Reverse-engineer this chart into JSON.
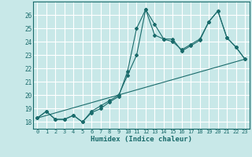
{
  "xlabel": "Humidex (Indice chaleur)",
  "bg_color": "#c8e8e8",
  "grid_color": "#ffffff",
  "line_color": "#1a6b6b",
  "xlim": [
    -0.5,
    23.5
  ],
  "ylim": [
    17.5,
    27.0
  ],
  "yticks": [
    18,
    19,
    20,
    21,
    22,
    23,
    24,
    25,
    26
  ],
  "xticks": [
    0,
    1,
    2,
    3,
    4,
    5,
    6,
    7,
    8,
    9,
    10,
    11,
    12,
    13,
    14,
    15,
    16,
    17,
    18,
    19,
    20,
    21,
    22,
    23
  ],
  "series1": [
    [
      0,
      18.3
    ],
    [
      1,
      18.8
    ],
    [
      2,
      18.2
    ],
    [
      3,
      18.2
    ],
    [
      4,
      18.5
    ],
    [
      5,
      18.0
    ],
    [
      6,
      18.7
    ],
    [
      7,
      19.0
    ],
    [
      8,
      19.5
    ],
    [
      9,
      19.9
    ],
    [
      10,
      21.8
    ],
    [
      11,
      25.0
    ],
    [
      12,
      26.4
    ],
    [
      13,
      25.3
    ],
    [
      14,
      24.2
    ],
    [
      15,
      24.2
    ],
    [
      16,
      23.3
    ],
    [
      17,
      23.7
    ],
    [
      18,
      24.1
    ],
    [
      19,
      25.5
    ],
    [
      20,
      26.3
    ],
    [
      21,
      24.3
    ],
    [
      22,
      23.6
    ],
    [
      23,
      22.7
    ]
  ],
  "series2": [
    [
      0,
      18.3
    ],
    [
      1,
      18.8
    ],
    [
      2,
      18.2
    ],
    [
      3,
      18.2
    ],
    [
      4,
      18.5
    ],
    [
      5,
      18.0
    ],
    [
      6,
      18.8
    ],
    [
      7,
      19.2
    ],
    [
      8,
      19.6
    ],
    [
      9,
      20.0
    ],
    [
      10,
      21.5
    ],
    [
      11,
      23.0
    ],
    [
      12,
      26.4
    ],
    [
      13,
      24.5
    ],
    [
      14,
      24.2
    ],
    [
      15,
      24.0
    ],
    [
      16,
      23.4
    ],
    [
      17,
      23.8
    ],
    [
      18,
      24.2
    ],
    [
      19,
      25.5
    ],
    [
      20,
      26.3
    ],
    [
      21,
      24.3
    ],
    [
      22,
      23.6
    ],
    [
      23,
      22.7
    ]
  ],
  "series3": [
    [
      0,
      18.3
    ],
    [
      23,
      22.7
    ]
  ]
}
